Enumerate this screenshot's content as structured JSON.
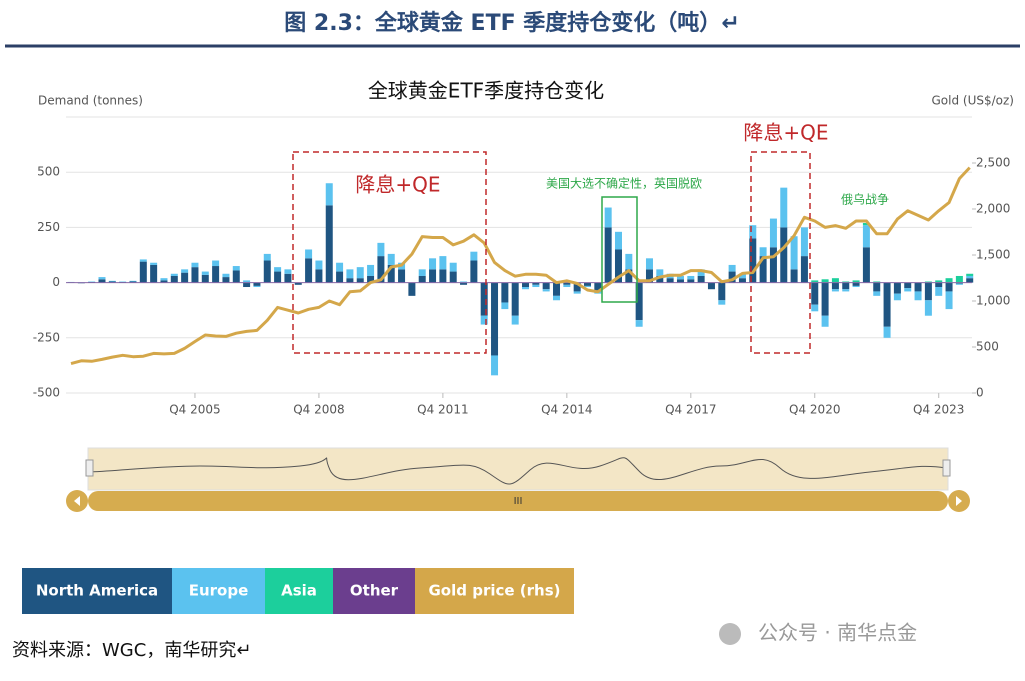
{
  "header": {
    "title": "图 2.3：全球黄金 ETF 季度持仓变化（吨）↵"
  },
  "chart_data": {
    "type": "bar",
    "stacked": true,
    "title": "全球黄金ETF季度持仓变化",
    "y_label": "Demand (tonnes)",
    "y2_label": "Gold (US$/oz)",
    "categories": [
      null,
      null,
      null,
      null,
      null,
      null,
      null,
      null,
      null,
      null,
      null,
      null,
      "Q4 2005",
      null,
      null,
      null,
      null,
      null,
      null,
      null,
      null,
      null,
      null,
      null,
      "Q4 2008",
      null,
      null,
      null,
      null,
      null,
      null,
      null,
      null,
      null,
      null,
      null,
      "Q4 2011",
      null,
      null,
      null,
      null,
      null,
      null,
      null,
      null,
      null,
      null,
      null,
      "Q4 2014",
      null,
      null,
      null,
      null,
      null,
      null,
      null,
      null,
      null,
      null,
      null,
      "Q4 2017",
      null,
      null,
      null,
      null,
      null,
      null,
      null,
      null,
      null,
      null,
      null,
      "Q4 2020",
      null,
      null,
      null,
      null,
      null,
      null,
      null,
      null,
      null,
      null,
      null,
      "Q4 2023",
      null,
      null,
      null
    ],
    "series": [
      {
        "name": "North America",
        "color": "#1f5582",
        "values": [
          2,
          -3,
          3,
          15,
          5,
          3,
          5,
          95,
          80,
          10,
          30,
          45,
          70,
          35,
          75,
          25,
          55,
          -20,
          -15,
          100,
          50,
          40,
          -10,
          110,
          60,
          350,
          50,
          20,
          20,
          30,
          120,
          80,
          60,
          -60,
          30,
          60,
          60,
          50,
          -10,
          100,
          -150,
          -330,
          -90,
          -150,
          -20,
          -10,
          -30,
          -60,
          -10,
          -40,
          -15,
          -40,
          250,
          150,
          60,
          -170,
          60,
          30,
          20,
          15,
          15,
          30,
          -30,
          -80,
          50,
          20,
          200,
          120,
          160,
          250,
          60,
          120,
          -100,
          -150,
          -30,
          -30,
          -15,
          160,
          -40,
          -200,
          -50,
          -25,
          -40,
          -80,
          -20,
          -40,
          -5,
          20
        ]
      },
      {
        "name": "Europe",
        "color": "#5bc2ef",
        "values": [
          1,
          2,
          2,
          10,
          3,
          2,
          3,
          10,
          10,
          10,
          10,
          15,
          20,
          15,
          25,
          15,
          20,
          10,
          -5,
          30,
          20,
          20,
          0,
          40,
          40,
          100,
          40,
          40,
          50,
          50,
          60,
          50,
          30,
          0,
          30,
          50,
          60,
          40,
          5,
          40,
          -40,
          -90,
          -30,
          -40,
          -10,
          -10,
          -10,
          -20,
          -10,
          -10,
          -5,
          -10,
          90,
          80,
          70,
          -30,
          50,
          30,
          20,
          15,
          15,
          30,
          0,
          -20,
          30,
          20,
          60,
          40,
          130,
          180,
          150,
          130,
          -30,
          -50,
          -10,
          -10,
          -5,
          100,
          -20,
          -50,
          -30,
          -15,
          -40,
          -70,
          -40,
          -80,
          -5,
          10
        ]
      },
      {
        "name": "Asia",
        "color": "#1ccf9c",
        "values": [
          0,
          0,
          0,
          0,
          0,
          0,
          0,
          0,
          0,
          0,
          0,
          0,
          0,
          0,
          0,
          0,
          0,
          0,
          0,
          0,
          0,
          0,
          0,
          0,
          0,
          0,
          0,
          0,
          0,
          0,
          0,
          0,
          0,
          0,
          0,
          0,
          0,
          0,
          0,
          0,
          0,
          0,
          0,
          0,
          0,
          0,
          0,
          0,
          0,
          0,
          0,
          0,
          0,
          0,
          0,
          0,
          0,
          0,
          0,
          0,
          0,
          0,
          0,
          0,
          0,
          0,
          0,
          0,
          0,
          0,
          0,
          0,
          10,
          15,
          20,
          5,
          10,
          10,
          5,
          0,
          0,
          0,
          0,
          5,
          10,
          20,
          30,
          10
        ]
      },
      {
        "name": "Other",
        "color": "#6b3e8e",
        "values": [
          0,
          0,
          0,
          0,
          0,
          0,
          0,
          0,
          0,
          0,
          0,
          0,
          0,
          0,
          0,
          0,
          0,
          0,
          0,
          0,
          0,
          0,
          0,
          0,
          0,
          0,
          0,
          0,
          0,
          0,
          0,
          0,
          0,
          0,
          0,
          0,
          0,
          0,
          0,
          0,
          0,
          0,
          0,
          0,
          0,
          0,
          0,
          0,
          0,
          0,
          0,
          0,
          0,
          0,
          0,
          0,
          0,
          0,
          0,
          0,
          0,
          0,
          0,
          0,
          0,
          0,
          0,
          0,
          0,
          0,
          0,
          0,
          0,
          0,
          0,
          0,
          0,
          0,
          0,
          0,
          0,
          0,
          0,
          0,
          0,
          0,
          0,
          0
        ]
      },
      {
        "name": "Gold price (rhs)",
        "color": "#d4a74a",
        "type": "line",
        "axis": "y2",
        "values": [
          320,
          350,
          345,
          365,
          390,
          410,
          395,
          400,
          430,
          425,
          430,
          485,
          560,
          630,
          620,
          615,
          650,
          670,
          680,
          790,
          930,
          900,
          870,
          910,
          930,
          1000,
          960,
          1100,
          1110,
          1200,
          1230,
          1370,
          1390,
          1510,
          1700,
          1690,
          1690,
          1610,
          1650,
          1720,
          1630,
          1420,
          1330,
          1270,
          1290,
          1290,
          1280,
          1200,
          1220,
          1190,
          1120,
          1100,
          1180,
          1260,
          1330,
          1220,
          1220,
          1260,
          1280,
          1280,
          1330,
          1330,
          1310,
          1210,
          1230,
          1300,
          1310,
          1470,
          1480,
          1580,
          1710,
          1910,
          1870,
          1800,
          1820,
          1790,
          1870,
          1870,
          1730,
          1730,
          1890,
          1980,
          1930,
          1880,
          1980,
          2070,
          2330,
          2450
        ]
      }
    ],
    "ylim": [
      -500,
      750
    ],
    "yticks": [
      -500,
      -250,
      0,
      250,
      500
    ],
    "y2lim": [
      0,
      3000
    ],
    "y2ticks": [
      0,
      500,
      {
        "value": 1000,
        "label": "1,000"
      },
      {
        "value": 1500,
        "label": "1,500"
      },
      {
        "value": 2000,
        "label": "2,000"
      },
      {
        "value": 2500,
        "label": "2,500"
      }
    ],
    "grid": true,
    "annotations": [
      "降息+QE",
      "美国大选不确定性，英国脱欧",
      "降息+QE",
      "俄乌战争"
    ]
  },
  "footer": {
    "source": "资料来源：WGC，南华研究↵",
    "watermark": "公众号 · 南华点金"
  }
}
